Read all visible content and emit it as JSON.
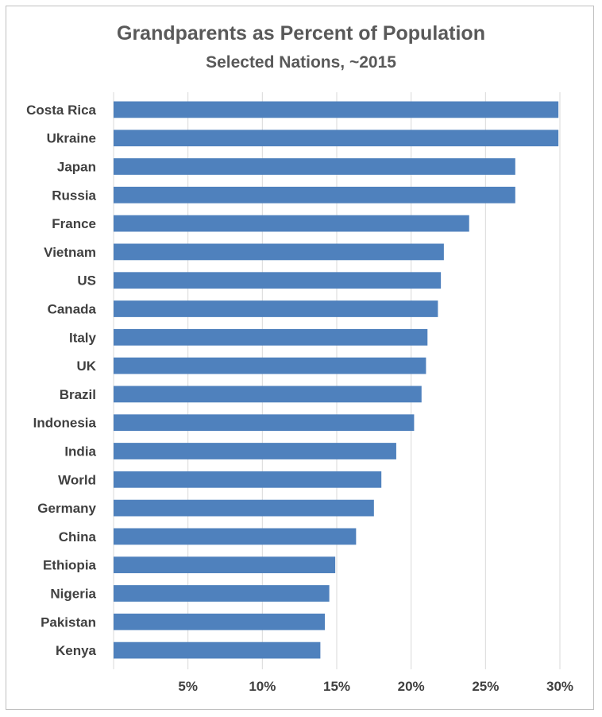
{
  "chart_data": {
    "type": "bar",
    "orientation": "horizontal",
    "title": "Grandparents  as Percent of Population",
    "subtitle": "Selected Nations, ~2015",
    "categories": [
      "Costa Rica",
      "Ukraine",
      "Japan",
      "Russia",
      "France",
      "Vietnam",
      "US",
      "Canada",
      "Italy",
      "UK",
      "Brazil",
      "Indonesia",
      "India",
      "World",
      "Germany",
      "China",
      "Ethiopia",
      "Nigeria",
      "Pakistan",
      "Kenya"
    ],
    "values": [
      29.9,
      29.9,
      27.0,
      27.0,
      23.9,
      22.2,
      22.0,
      21.8,
      21.1,
      21.0,
      20.7,
      20.2,
      19.0,
      18.0,
      17.5,
      16.3,
      14.9,
      14.5,
      14.2,
      13.9
    ],
    "xlim": [
      0,
      30
    ],
    "xticks": [
      5,
      10,
      15,
      20,
      25,
      30
    ],
    "xtick_labels": [
      "5%",
      "10%",
      "15%",
      "20%",
      "25%",
      "30%"
    ],
    "grid": true,
    "bar_color": "#4f81bd",
    "grid_color": "#d9d9d9"
  }
}
